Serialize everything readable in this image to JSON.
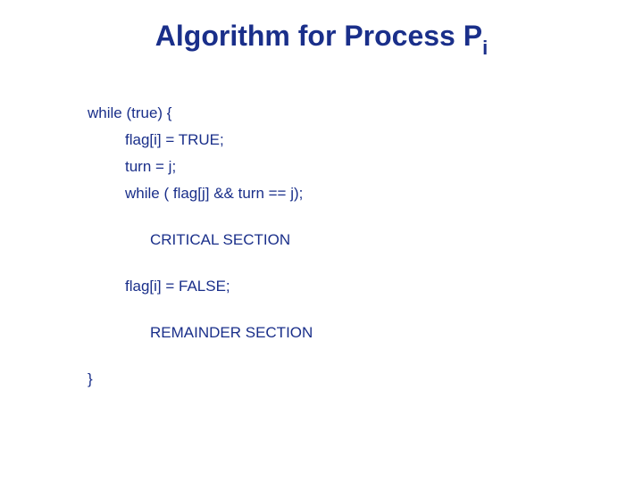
{
  "title": {
    "main": "Algorithm for Process P",
    "subscript": "i",
    "color": "#1a2f8a",
    "fontsize_main": 32,
    "fontsize_sub": 22,
    "fontweight": "bold"
  },
  "code": {
    "color": "#1a2f8a",
    "fontsize": 17,
    "lines": [
      {
        "text": "while (true) {",
        "indent": 0
      },
      {
        "text": "flag[i] = TRUE;",
        "indent": 1
      },
      {
        "text": "turn = j;",
        "indent": 1
      },
      {
        "text": "while ( flag[j] && turn == j);",
        "indent": 1
      },
      {
        "gap": true
      },
      {
        "text": "CRITICAL SECTION",
        "indent": 2
      },
      {
        "gap": true
      },
      {
        "text": "flag[i] = FALSE;",
        "indent": 1
      },
      {
        "gap": true
      },
      {
        "text": "REMAINDER SECTION",
        "indent": 2
      },
      {
        "gap": true
      },
      {
        "text": "}",
        "indent": 0
      }
    ]
  },
  "background_color": "#ffffff"
}
